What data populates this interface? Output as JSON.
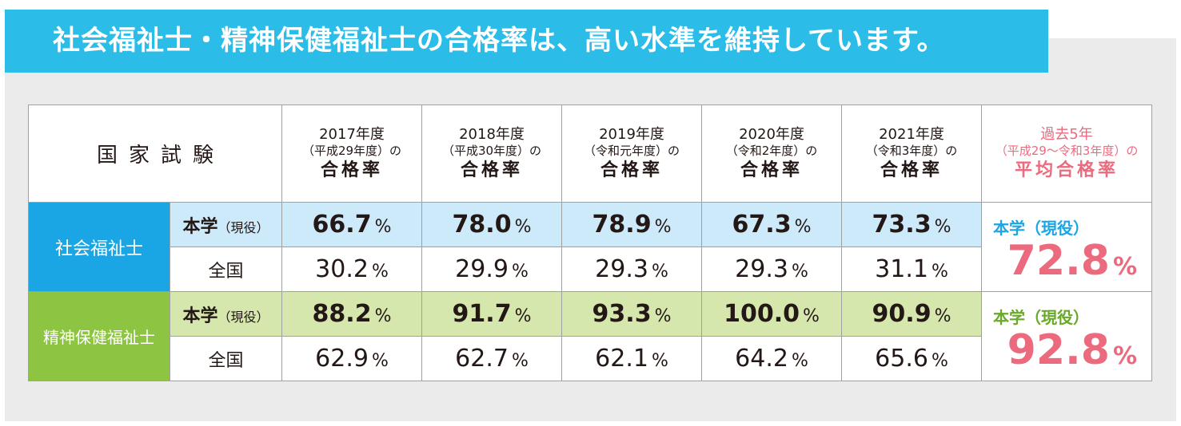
{
  "title": "社会福祉士・精神保健福祉士の合格率は、高い水準を維持しています。",
  "table": {
    "exam_header": "国家試験",
    "years": [
      {
        "year": "2017年度",
        "era": "（平成29年度）の",
        "rate_label": "合格率"
      },
      {
        "year": "2018年度",
        "era": "（平成30年度）の",
        "rate_label": "合格率"
      },
      {
        "year": "2019年度",
        "era": "（令和元年度）の",
        "rate_label": "合格率"
      },
      {
        "year": "2020年度",
        "era": "（令和2年度）の",
        "rate_label": "合格率"
      },
      {
        "year": "2021年度",
        "era": "（令和3年度）の",
        "rate_label": "合格率"
      }
    ],
    "avg_header": {
      "line1": "過去5年",
      "line2": "（平成29〜令和3年度）の",
      "line3": "平均合格率"
    },
    "pct_unit": "%",
    "groups": [
      {
        "name": "社会福祉士",
        "school_label": "本学",
        "school_label_paren": "（現役）",
        "school_values": [
          "66.7",
          "78.0",
          "78.9",
          "67.3",
          "73.3"
        ],
        "national_label": "全国",
        "national_values": [
          "30.2",
          "29.9",
          "29.3",
          "29.3",
          "31.1"
        ],
        "avg_label": "本学（現役）",
        "avg_value": "72.8"
      },
      {
        "name": "精神保健福祉士",
        "school_label": "本学",
        "school_label_paren": "（現役）",
        "school_values": [
          "88.2",
          "91.7",
          "93.3",
          "100.0",
          "90.9"
        ],
        "national_label": "全国",
        "national_values": [
          "62.9",
          "62.7",
          "62.1",
          "64.2",
          "65.6"
        ],
        "avg_label": "本学（現役）",
        "avg_value": "92.8"
      }
    ]
  },
  "colors": {
    "title_band": "#2bbde8",
    "social_group": "#1aa6e4",
    "psych_group": "#8dc441",
    "social_row": "#cdeafb",
    "psych_row": "#d6e7ad",
    "avg_accent": "#ec6a7e",
    "panel_bg": "#ebebeb"
  }
}
